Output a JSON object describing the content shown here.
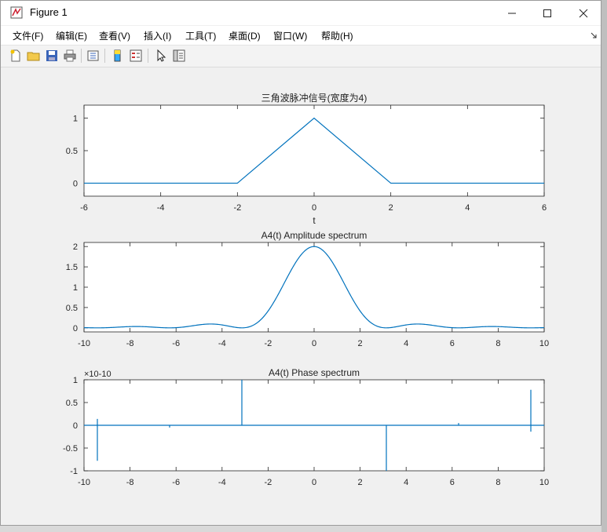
{
  "window": {
    "title": "Figure 1"
  },
  "menu": [
    "文件(F)",
    "编辑(E)",
    "查看(V)",
    "插入(I)",
    "工具(T)",
    "桌面(D)",
    "窗口(W)",
    "帮助(H)"
  ],
  "toolbar": [
    "new-file-icon",
    "open-folder-icon",
    "save-icon",
    "print-icon",
    "link-icon",
    "colorbar-icon",
    "legend-icon",
    "pointer-icon",
    "property-editor-icon"
  ],
  "chart_data": [
    {
      "type": "line",
      "title": "三角波脉冲信号(宽度为4)",
      "xlabel": "t",
      "ylabel": "",
      "xlim": [
        -6,
        6
      ],
      "ylim": [
        -0.2,
        1.2
      ],
      "xticks": [
        -6,
        -4,
        -2,
        0,
        2,
        4,
        6
      ],
      "yticks": [
        0,
        0.5,
        1
      ],
      "x": [
        -6,
        -2,
        0,
        2,
        6
      ],
      "y": [
        0,
        0,
        1,
        0,
        0
      ],
      "color": "#0072bd"
    },
    {
      "type": "line",
      "title": "A4(t) Amplitude spectrum",
      "xlim": [
        -10,
        10
      ],
      "ylim": [
        -0.1,
        2.1
      ],
      "xticks": [
        -10,
        -8,
        -6,
        -4,
        -2,
        0,
        2,
        4,
        6,
        8,
        10
      ],
      "yticks": [
        0,
        0.5,
        1,
        1.5,
        2
      ],
      "function": "2*sinc^2(w/pi)",
      "color": "#0072bd"
    },
    {
      "type": "line",
      "title": "A4(t) Phase spectrum",
      "xlim": [
        -10,
        10
      ],
      "ylim": [
        -1,
        1
      ],
      "y_exponent": "×10-10",
      "xticks": [
        -10,
        -8,
        -6,
        -4,
        -2,
        0,
        2,
        4,
        6,
        8,
        10
      ],
      "yticks": [
        -1,
        -0.5,
        0,
        0.5,
        1
      ],
      "spikes": [
        {
          "x": -9.42,
          "ymin": -0.78,
          "ymax": 0.14
        },
        {
          "x": -6.28,
          "ymin": -0.05,
          "ymax": 0.0
        },
        {
          "x": -3.14,
          "ymin": 0.0,
          "ymax": 1.0
        },
        {
          "x": 3.14,
          "ymin": -1.0,
          "ymax": 0.0
        },
        {
          "x": 6.28,
          "ymin": 0.0,
          "ymax": 0.05
        },
        {
          "x": 9.42,
          "ymin": -0.14,
          "ymax": 0.78
        }
      ],
      "color": "#0072bd"
    }
  ]
}
